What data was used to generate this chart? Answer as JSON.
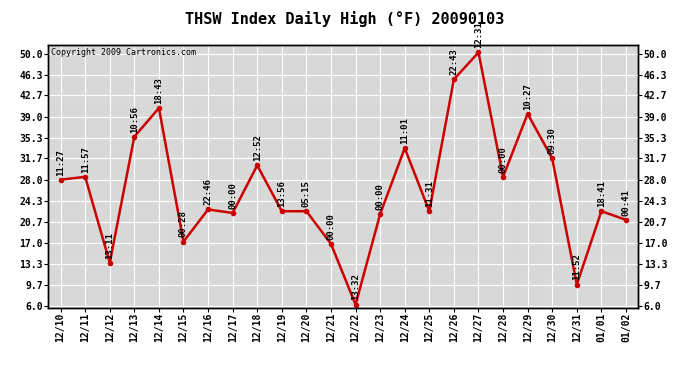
{
  "title": "THSW Index Daily High (°F) 20090103",
  "copyright": "Copyright 2009 Cartronics.com",
  "dates": [
    "12/10",
    "12/11",
    "12/12",
    "12/13",
    "12/14",
    "12/15",
    "12/16",
    "12/17",
    "12/18",
    "12/19",
    "12/20",
    "12/21",
    "12/22",
    "12/23",
    "12/24",
    "12/25",
    "12/26",
    "12/27",
    "12/28",
    "12/29",
    "12/30",
    "12/31",
    "01/01",
    "01/02"
  ],
  "values": [
    28.0,
    28.5,
    13.5,
    35.5,
    40.5,
    17.2,
    22.8,
    22.2,
    30.5,
    22.5,
    22.5,
    16.8,
    6.2,
    22.0,
    33.5,
    22.5,
    45.5,
    50.2,
    28.5,
    39.5,
    31.7,
    9.7,
    22.5,
    21.0
  ],
  "labels": [
    "11:27",
    "11:57",
    "13:11",
    "10:56",
    "18:43",
    "00:28",
    "22:46",
    "00:00",
    "12:52",
    "13:56",
    "05:15",
    "00:00",
    "13:32",
    "00:00",
    "11:01",
    "11:31",
    "22:43",
    "12:31",
    "00:00",
    "10:27",
    "09:30",
    "11:52",
    "18:41",
    "00:41"
  ],
  "yticks": [
    6.0,
    9.7,
    13.3,
    17.0,
    20.7,
    24.3,
    28.0,
    31.7,
    35.3,
    39.0,
    42.7,
    46.3,
    50.0
  ],
  "ymin": 6.0,
  "ymax": 50.0,
  "line_color": "#cc0000",
  "marker_color": "#cc0000",
  "plot_bg_color": "#d8d8d8",
  "fig_bg_color": "#ffffff",
  "grid_color": "#ffffff",
  "title_fontsize": 11,
  "label_fontsize": 6.5,
  "tick_fontsize": 7,
  "copyright_fontsize": 6
}
